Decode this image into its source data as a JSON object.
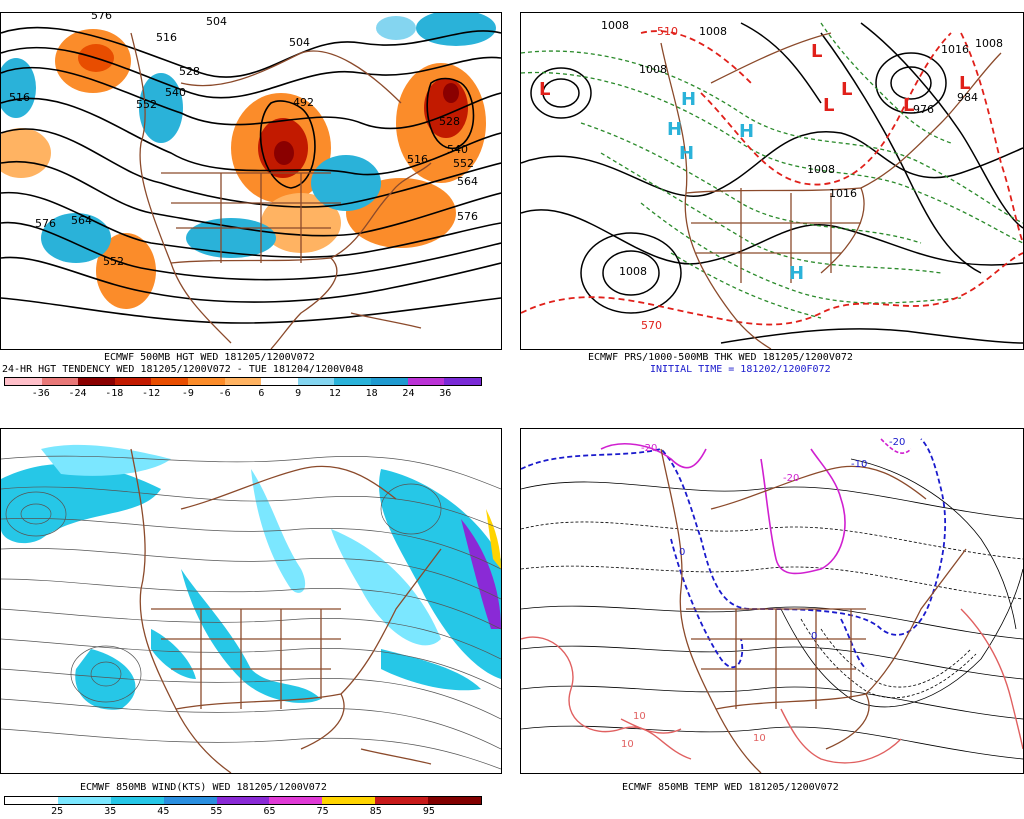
{
  "panels": {
    "tl": {
      "caption1": "ECMWF 500MB HGT WED 181205/1200V072",
      "caption2": "24-HR HGT TENDENCY WED 181205/1200V072 - TUE 181204/1200V048",
      "contour_labels": [
        "576",
        "504",
        "516",
        "516",
        "528",
        "552",
        "540",
        "492",
        "504",
        "528",
        "552",
        "540",
        "516",
        "564",
        "576",
        "576",
        "564",
        "552"
      ],
      "colorbar": {
        "colors": [
          "#ffbfc9",
          "#e87878",
          "#8a0000",
          "#c21a00",
          "#e84d00",
          "#fb8c2a",
          "#ffb362",
          "#ffffff",
          "#84d5f0",
          "#2ab2d9",
          "#1f9ad0",
          "#bb33d6",
          "#7a2ad6"
        ],
        "ticks": [
          "-36",
          "-24",
          "-18",
          "-12",
          "-9",
          "-6",
          "6",
          "9",
          "12",
          "18",
          "24",
          "36"
        ]
      }
    },
    "tr": {
      "caption1": "ECMWF PRS/1000-500MB THK WED 181205/1200V072",
      "caption2": "INITIAL TIME = 181202/1200F072",
      "isobar_labels": [
        "1008",
        "1008",
        "1008",
        "1016",
        "1008",
        "984",
        "976",
        "1008",
        "1016",
        "1008"
      ],
      "thickness_labels": [
        "510",
        "570"
      ],
      "pressure_centers": [
        "L",
        "L",
        "L",
        "L",
        "L",
        "L",
        "H",
        "H",
        "H",
        "H",
        "H"
      ]
    },
    "bl": {
      "caption1": "ECMWF 850MB WIND(KTS) WED 181205/1200V072",
      "colorbar": {
        "colors": [
          "#ffffff",
          "#7be7ff",
          "#26c7e7",
          "#2a8fe0",
          "#8a2ad6",
          "#e03ad6",
          "#ffd400",
          "#c81a1a",
          "#820000"
        ],
        "ticks": [
          "25",
          "35",
          "45",
          "55",
          "65",
          "75",
          "85",
          "95"
        ]
      }
    },
    "br": {
      "caption1": "ECMWF 850MB TEMP WED 181205/1200V072",
      "temp_labels": [
        "-20",
        "-20",
        "-10",
        "-20",
        "0",
        "0",
        "10",
        "10",
        "10"
      ]
    }
  }
}
